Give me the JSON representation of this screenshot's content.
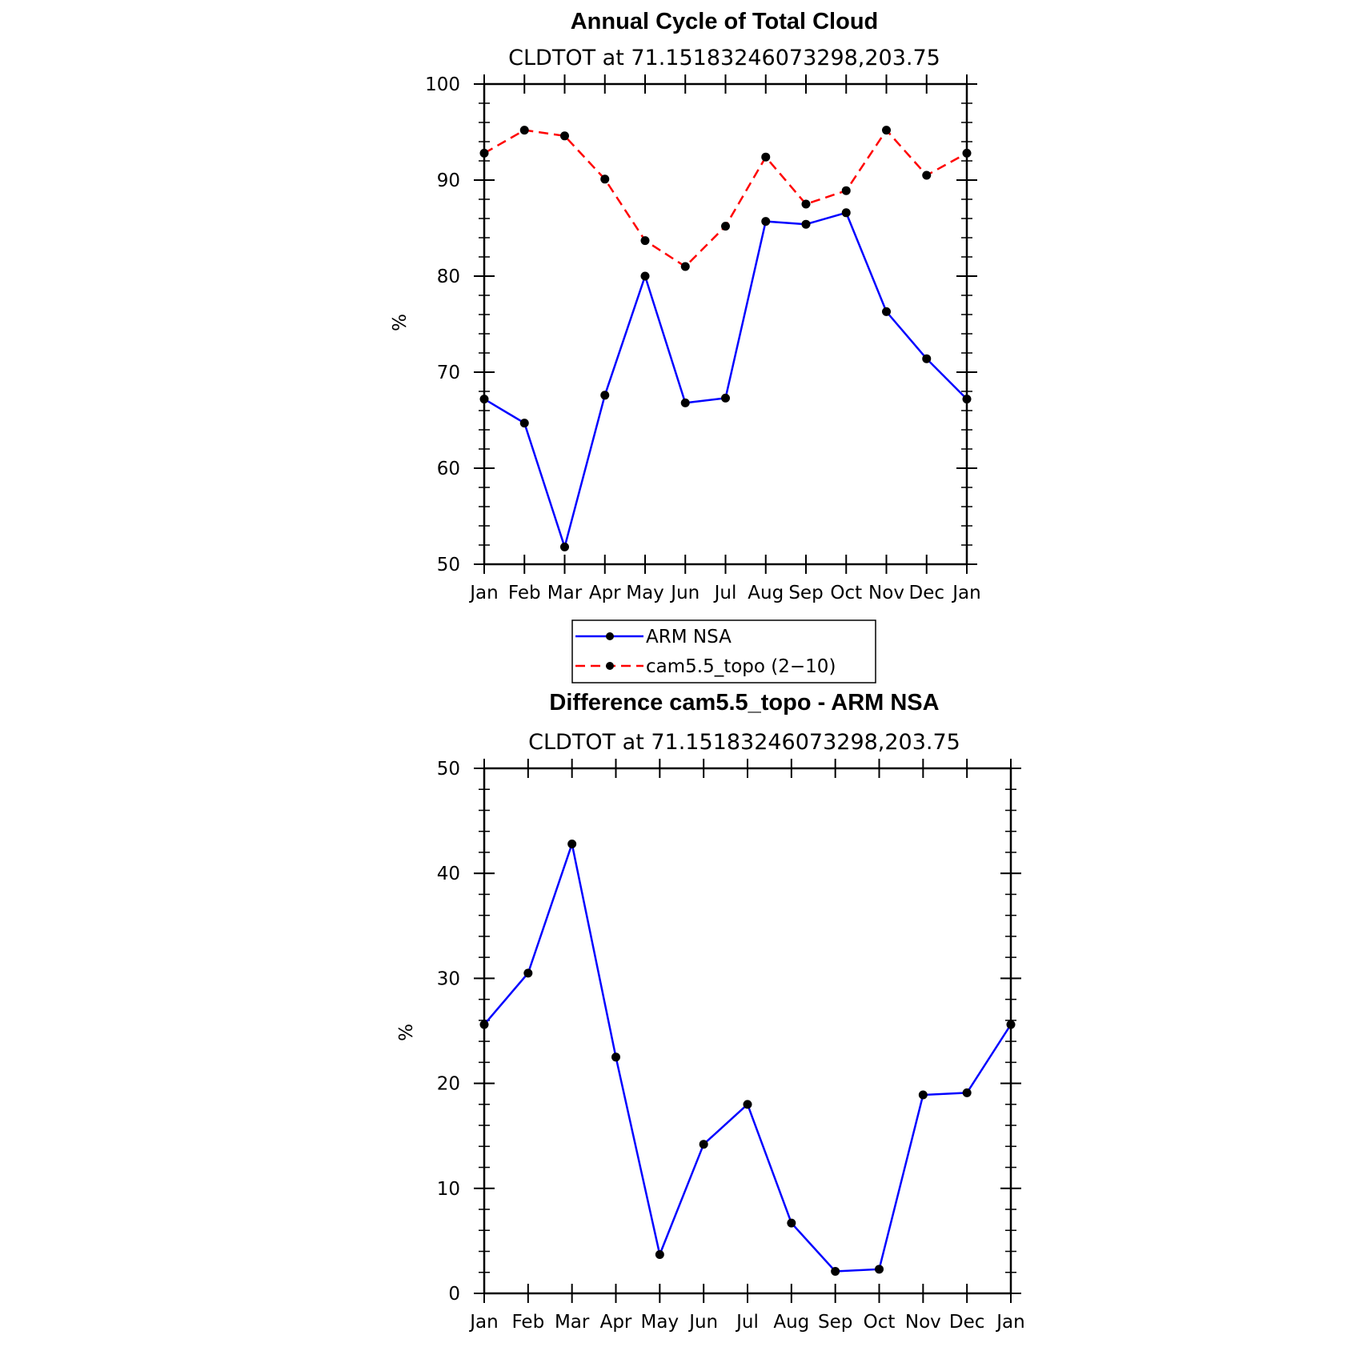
{
  "chart_data": [
    {
      "type": "line",
      "title": "Annual Cycle of Total Cloud",
      "subtitle": "CLDTOT at 71.15183246073298,203.75",
      "ylabel": "%",
      "ylim": [
        50,
        100
      ],
      "yticks": [
        "50",
        "60",
        "70",
        "80",
        "90",
        "100"
      ],
      "categories": [
        "Jan",
        "Feb",
        "Mar",
        "Apr",
        "May",
        "Jun",
        "Jul",
        "Aug",
        "Sep",
        "Oct",
        "Nov",
        "Dec",
        "Jan"
      ],
      "grid": false,
      "legend_position": "bottom",
      "series": [
        {
          "name": "ARM NSA",
          "color": "#0000ff",
          "dash": "solid",
          "values": [
            67.2,
            64.7,
            51.8,
            67.6,
            80.0,
            66.8,
            67.3,
            85.7,
            85.4,
            86.6,
            76.3,
            71.4,
            67.2
          ]
        },
        {
          "name": "cam5.5_topo (2−10)",
          "color": "#ff0000",
          "dash": "dashed",
          "values": [
            92.8,
            95.2,
            94.6,
            90.1,
            83.7,
            81.0,
            85.2,
            92.4,
            87.5,
            88.9,
            95.2,
            90.5,
            92.8
          ]
        }
      ]
    },
    {
      "type": "line",
      "title": "Difference cam5.5_topo - ARM NSA",
      "subtitle": "CLDTOT at 71.15183246073298,203.75",
      "ylabel": "%",
      "ylim": [
        0,
        50
      ],
      "yticks": [
        "0",
        "10",
        "20",
        "30",
        "40",
        "50"
      ],
      "categories": [
        "Jan",
        "Feb",
        "Mar",
        "Apr",
        "May",
        "Jun",
        "Jul",
        "Aug",
        "Sep",
        "Oct",
        "Nov",
        "Dec",
        "Jan"
      ],
      "grid": false,
      "series": [
        {
          "color": "#0000ff",
          "dash": "solid",
          "values": [
            25.6,
            30.5,
            42.8,
            22.5,
            3.7,
            14.2,
            18.0,
            6.7,
            2.1,
            2.3,
            18.9,
            19.1,
            25.6
          ]
        }
      ]
    }
  ]
}
